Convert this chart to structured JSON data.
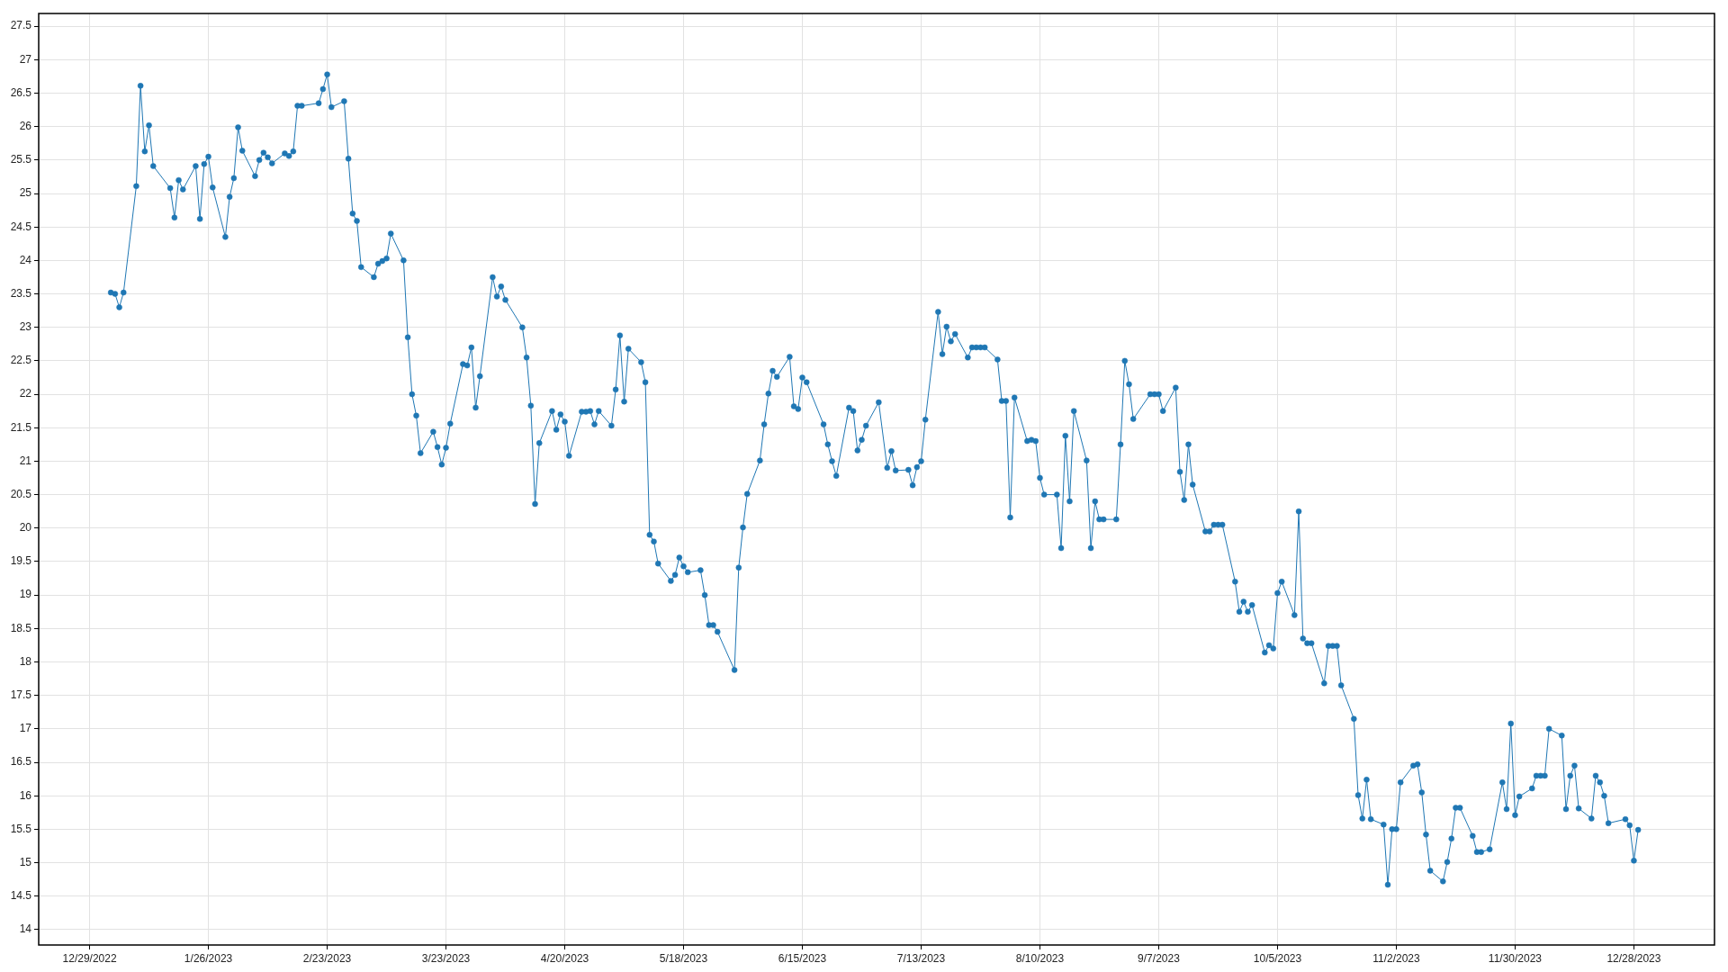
{
  "chart_data": {
    "type": "line",
    "color": "#1f77b4",
    "marker": "circle",
    "line_style": "solid",
    "grid": true,
    "xlim": [
      "2022-12-17",
      "2024-01-16"
    ],
    "ylim": [
      13.77,
      27.69
    ],
    "xticks": [
      {
        "value": "2022-12-29",
        "label": "12/29/2022"
      },
      {
        "value": "2023-01-26",
        "label": "1/26/2023"
      },
      {
        "value": "2023-02-23",
        "label": "2/23/2023"
      },
      {
        "value": "2023-03-23",
        "label": "3/23/2023"
      },
      {
        "value": "2023-04-20",
        "label": "4/20/2023"
      },
      {
        "value": "2023-05-18",
        "label": "5/18/2023"
      },
      {
        "value": "2023-06-15",
        "label": "6/15/2023"
      },
      {
        "value": "2023-07-13",
        "label": "7/13/2023"
      },
      {
        "value": "2023-08-10",
        "label": "8/10/2023"
      },
      {
        "value": "2023-09-07",
        "label": "9/7/2023"
      },
      {
        "value": "2023-10-05",
        "label": "10/5/2023"
      },
      {
        "value": "2023-11-02",
        "label": "11/2/2023"
      },
      {
        "value": "2023-11-30",
        "label": "11/30/2023"
      },
      {
        "value": "2023-12-28",
        "label": "12/28/2023"
      }
    ],
    "yticks": [
      14,
      14.5,
      15,
      15.5,
      16,
      16.5,
      17,
      17.5,
      18,
      18.5,
      19,
      19.5,
      20,
      20.5,
      21,
      21.5,
      22,
      22.5,
      23,
      23.5,
      24,
      24.5,
      25,
      25.5,
      26,
      26.5,
      27,
      27.5
    ],
    "x": [
      "2023-01-03",
      "2023-01-04",
      "2023-01-05",
      "2023-01-06",
      "2023-01-09",
      "2023-01-10",
      "2023-01-11",
      "2023-01-12",
      "2023-01-13",
      "2023-01-17",
      "2023-01-18",
      "2023-01-19",
      "2023-01-20",
      "2023-01-23",
      "2023-01-24",
      "2023-01-25",
      "2023-01-26",
      "2023-01-27",
      "2023-01-30",
      "2023-01-31",
      "2023-02-01",
      "2023-02-02",
      "2023-02-03",
      "2023-02-06",
      "2023-02-07",
      "2023-02-08",
      "2023-02-09",
      "2023-02-10",
      "2023-02-13",
      "2023-02-14",
      "2023-02-15",
      "2023-02-16",
      "2023-02-17",
      "2023-02-21",
      "2023-02-22",
      "2023-02-23",
      "2023-02-24",
      "2023-02-27",
      "2023-02-28",
      "2023-03-01",
      "2023-03-02",
      "2023-03-03",
      "2023-03-06",
      "2023-03-07",
      "2023-03-08",
      "2023-03-09",
      "2023-03-10",
      "2023-03-13",
      "2023-03-14",
      "2023-03-15",
      "2023-03-16",
      "2023-03-17",
      "2023-03-20",
      "2023-03-21",
      "2023-03-22",
      "2023-03-23",
      "2023-03-24",
      "2023-03-27",
      "2023-03-28",
      "2023-03-29",
      "2023-03-30",
      "2023-03-31",
      "2023-04-03",
      "2023-04-04",
      "2023-04-05",
      "2023-04-06",
      "2023-04-10",
      "2023-04-11",
      "2023-04-12",
      "2023-04-13",
      "2023-04-14",
      "2023-04-17",
      "2023-04-18",
      "2023-04-19",
      "2023-04-20",
      "2023-04-21",
      "2023-04-24",
      "2023-04-25",
      "2023-04-26",
      "2023-04-27",
      "2023-04-28",
      "2023-05-01",
      "2023-05-02",
      "2023-05-03",
      "2023-05-04",
      "2023-05-05",
      "2023-05-08",
      "2023-05-09",
      "2023-05-10",
      "2023-05-11",
      "2023-05-12",
      "2023-05-15",
      "2023-05-16",
      "2023-05-17",
      "2023-05-18",
      "2023-05-19",
      "2023-05-22",
      "2023-05-23",
      "2023-05-24",
      "2023-05-25",
      "2023-05-26",
      "2023-05-30",
      "2023-05-31",
      "2023-06-01",
      "2023-06-02",
      "2023-06-05",
      "2023-06-06",
      "2023-06-07",
      "2023-06-08",
      "2023-06-09",
      "2023-06-12",
      "2023-06-13",
      "2023-06-14",
      "2023-06-15",
      "2023-06-16",
      "2023-06-20",
      "2023-06-21",
      "2023-06-22",
      "2023-06-23",
      "2023-06-26",
      "2023-06-27",
      "2023-06-28",
      "2023-06-29",
      "2023-06-30",
      "2023-07-03",
      "2023-07-05",
      "2023-07-06",
      "2023-07-07",
      "2023-07-10",
      "2023-07-11",
      "2023-07-12",
      "2023-07-13",
      "2023-07-14",
      "2023-07-17",
      "2023-07-18",
      "2023-07-19",
      "2023-07-20",
      "2023-07-21",
      "2023-07-24",
      "2023-07-25",
      "2023-07-26",
      "2023-07-27",
      "2023-07-28",
      "2023-07-31",
      "2023-08-01",
      "2023-08-02",
      "2023-08-03",
      "2023-08-04",
      "2023-08-07",
      "2023-08-08",
      "2023-08-09",
      "2023-08-10",
      "2023-08-11",
      "2023-08-14",
      "2023-08-15",
      "2023-08-16",
      "2023-08-17",
      "2023-08-18",
      "2023-08-21",
      "2023-08-22",
      "2023-08-23",
      "2023-08-24",
      "2023-08-25",
      "2023-08-28",
      "2023-08-29",
      "2023-08-30",
      "2023-08-31",
      "2023-09-01",
      "2023-09-05",
      "2023-09-06",
      "2023-09-07",
      "2023-09-08",
      "2023-09-11",
      "2023-09-12",
      "2023-09-13",
      "2023-09-14",
      "2023-09-15",
      "2023-09-18",
      "2023-09-19",
      "2023-09-20",
      "2023-09-21",
      "2023-09-22",
      "2023-09-25",
      "2023-09-26",
      "2023-09-27",
      "2023-09-28",
      "2023-09-29",
      "2023-10-02",
      "2023-10-03",
      "2023-10-04",
      "2023-10-05",
      "2023-10-06",
      "2023-10-09",
      "2023-10-10",
      "2023-10-11",
      "2023-10-12",
      "2023-10-13",
      "2023-10-16",
      "2023-10-17",
      "2023-10-18",
      "2023-10-19",
      "2023-10-20",
      "2023-10-23",
      "2023-10-24",
      "2023-10-25",
      "2023-10-26",
      "2023-10-27",
      "2023-10-30",
      "2023-10-31",
      "2023-11-01",
      "2023-11-02",
      "2023-11-03",
      "2023-11-06",
      "2023-11-07",
      "2023-11-08",
      "2023-11-09",
      "2023-11-10",
      "2023-11-13",
      "2023-11-14",
      "2023-11-15",
      "2023-11-16",
      "2023-11-17",
      "2023-11-20",
      "2023-11-21",
      "2023-11-22",
      "2023-11-24",
      "2023-11-27",
      "2023-11-28",
      "2023-11-29",
      "2023-11-30",
      "2023-12-01",
      "2023-12-04",
      "2023-12-05",
      "2023-12-06",
      "2023-12-07",
      "2023-12-08",
      "2023-12-11",
      "2023-12-12",
      "2023-12-13",
      "2023-12-14",
      "2023-12-15",
      "2023-12-18",
      "2023-12-19",
      "2023-12-20",
      "2023-12-21",
      "2023-12-22",
      "2023-12-26",
      "2023-12-27",
      "2023-12-28",
      "2023-12-29"
    ],
    "values": [
      23.52,
      23.5,
      23.3,
      23.52,
      25.11,
      26.61,
      25.63,
      26.02,
      25.41,
      25.08,
      24.64,
      25.2,
      25.06,
      25.41,
      24.62,
      25.44,
      25.55,
      25.09,
      24.35,
      24.95,
      25.23,
      25.99,
      25.64,
      25.26,
      25.5,
      25.61,
      25.54,
      25.45,
      25.6,
      25.56,
      25.63,
      26.31,
      26.31,
      26.35,
      26.56,
      26.78,
      26.29,
      26.38,
      25.52,
      24.7,
      24.59,
      23.9,
      23.75,
      23.95,
      23.99,
      24.03,
      24.4,
      24.0,
      22.85,
      22.0,
      21.68,
      21.12,
      21.44,
      21.21,
      20.95,
      21.2,
      21.56,
      22.45,
      22.43,
      22.7,
      21.8,
      22.27,
      23.75,
      23.46,
      23.61,
      23.41,
      23.0,
      22.55,
      21.83,
      20.36,
      21.27,
      21.75,
      21.47,
      21.7,
      21.59,
      21.08,
      21.74,
      21.74,
      21.75,
      21.55,
      21.75,
      21.53,
      22.07,
      22.88,
      21.89,
      22.68,
      22.48,
      22.18,
      19.9,
      19.8,
      19.47,
      19.21,
      19.3,
      19.56,
      19.43,
      19.34,
      19.37,
      19.0,
      18.55,
      18.55,
      18.45,
      17.88,
      19.41,
      20.01,
      20.51,
      21.01,
      21.55,
      22.01,
      22.35,
      22.26,
      22.56,
      21.82,
      21.78,
      22.25,
      22.18,
      21.55,
      21.25,
      21.0,
      20.78,
      21.8,
      21.75,
      21.16,
      21.32,
      21.53,
      21.88,
      20.9,
      21.15,
      20.86,
      20.87,
      20.64,
      20.91,
      21.0,
      21.62,
      23.23,
      22.6,
      23.01,
      22.79,
      22.9,
      22.55,
      22.7,
      22.7,
      22.7,
      22.7,
      22.52,
      21.9,
      21.9,
      20.16,
      21.95,
      21.3,
      21.32,
      21.3,
      20.75,
      20.5,
      20.5,
      19.7,
      21.38,
      20.4,
      21.75,
      21.01,
      19.7,
      20.4,
      20.13,
      20.13,
      20.13,
      21.25,
      22.5,
      22.15,
      21.63,
      22.0,
      22.0,
      22.0,
      21.75,
      22.1,
      20.84,
      20.42,
      21.25,
      20.65,
      19.95,
      19.95,
      20.05,
      20.05,
      20.05,
      19.2,
      18.75,
      18.9,
      18.75,
      18.85,
      18.14,
      18.25,
      18.2,
      19.03,
      19.2,
      18.7,
      20.25,
      18.35,
      18.28,
      18.28,
      17.68,
      18.24,
      18.24,
      18.24,
      17.65,
      17.15,
      16.01,
      15.66,
      16.24,
      15.65,
      15.57,
      14.67,
      15.5,
      15.5,
      16.2,
      16.45,
      16.47,
      16.05,
      15.42,
      14.88,
      14.72,
      15.01,
      15.36,
      15.82,
      15.82,
      15.4,
      15.16,
      15.16,
      15.2,
      16.2,
      15.8,
      17.08,
      15.71,
      15.99,
      16.11,
      16.3,
      16.3,
      16.3,
      17.0,
      16.9,
      15.8,
      16.3,
      16.45,
      15.81,
      15.66,
      16.3,
      16.2,
      16.0,
      15.59,
      15.65,
      15.56,
      15.03,
      15.49
    ]
  }
}
